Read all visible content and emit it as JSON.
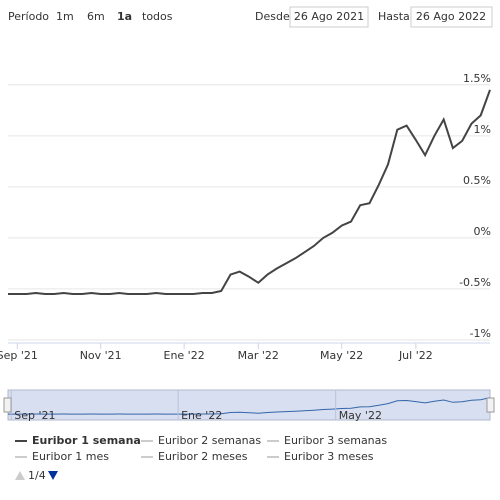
{
  "chart_data": {
    "type": "line",
    "range_selector": {
      "label": "Período",
      "buttons": [
        "1m",
        "6m",
        "1a",
        "todos"
      ],
      "selected": 2,
      "from_label": "Desde",
      "from": "26 Ago 2021",
      "to_label": "Hasta",
      "to": "26 Ago 2022"
    },
    "categories": [
      null,
      "Sep '21",
      null,
      null,
      null,
      null,
      null,
      null,
      null,
      null,
      "Nov '21",
      null,
      null,
      null,
      null,
      null,
      null,
      null,
      null,
      "Ene '22",
      null,
      null,
      null,
      null,
      null,
      null,
      null,
      "Mar '22",
      null,
      null,
      null,
      null,
      null,
      null,
      null,
      null,
      "May '22",
      null,
      null,
      null,
      null,
      null,
      null,
      null,
      "Jul '22",
      null,
      null,
      null,
      null,
      null,
      null,
      null,
      null
    ],
    "series": [
      {
        "name": "Euribor 1 semana",
        "color": "#444444",
        "values": [
          -0.55,
          -0.55,
          -0.55,
          -0.54,
          -0.55,
          -0.55,
          -0.54,
          -0.55,
          -0.55,
          -0.54,
          -0.55,
          -0.55,
          -0.54,
          -0.55,
          -0.55,
          -0.55,
          -0.54,
          -0.55,
          -0.55,
          -0.55,
          -0.55,
          -0.54,
          -0.54,
          -0.52,
          -0.36,
          -0.33,
          -0.38,
          -0.44,
          -0.36,
          -0.3,
          -0.25,
          -0.2,
          -0.14,
          -0.08,
          0.0,
          0.05,
          0.12,
          0.16,
          0.32,
          0.34,
          0.52,
          0.72,
          1.06,
          1.1,
          0.96,
          0.81,
          1.0,
          1.16,
          0.88,
          0.95,
          1.12,
          1.2,
          1.45
        ]
      }
    ],
    "hidden_series": [
      "Euribor 2 semanas",
      "Euribor 3 semanas",
      "Euribor 1 mes",
      "Euribor 2 meses",
      "Euribor 3 meses"
    ],
    "legend_page": "1/4",
    "navigator_xticks": [
      "Sep '21",
      "Ene '22",
      "May '22"
    ],
    "ylim": [
      -1.03,
      1.89
    ],
    "yticks": [
      {
        "value": -1,
        "label": "-1%"
      },
      {
        "value": -0.5,
        "label": "-0.5%"
      },
      {
        "value": 0,
        "label": "0%"
      },
      {
        "value": 0.5,
        "label": "0.5%"
      },
      {
        "value": 1,
        "label": "1%"
      },
      {
        "value": 1.5,
        "label": "1.5%"
      }
    ],
    "grid": true
  }
}
